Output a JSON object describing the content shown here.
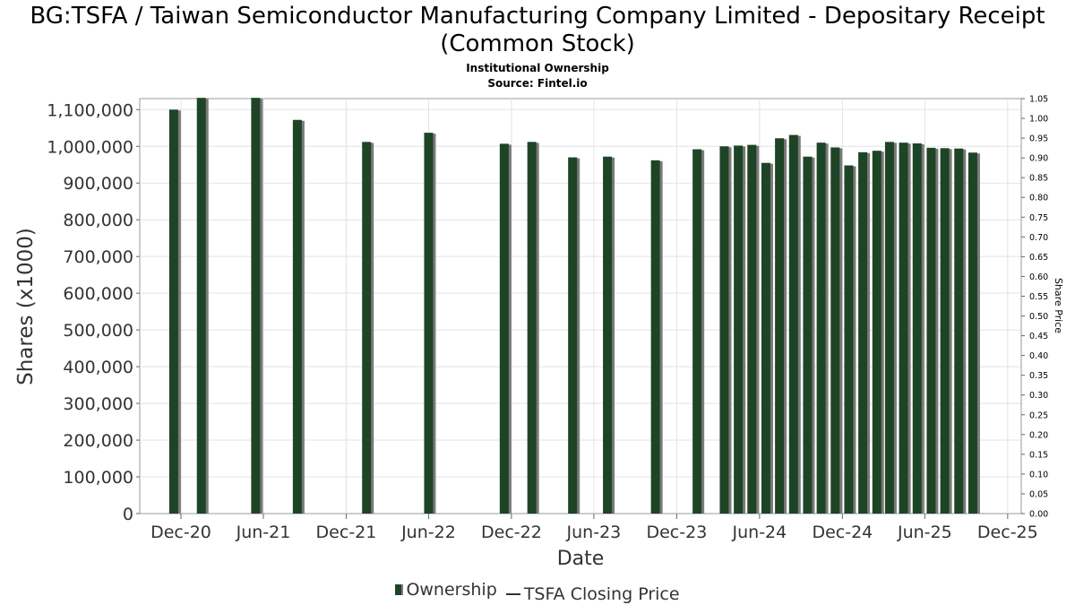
{
  "title": "BG:TSFA / Taiwan Semiconductor Manufacturing Company Limited - Depositary Receipt (Common Stock)",
  "subtitle": "Institutional Ownership",
  "source": "Source: Fintel.io",
  "legend": {
    "ownership": "Ownership",
    "price": "TSFA Closing Price"
  },
  "colors": {
    "bar": "#1e4426",
    "bar_shadow": "#7a7a7a",
    "grid": "#e3e3e3",
    "frame": "#999999"
  },
  "chart_data": {
    "type": "bar",
    "title": "BG:TSFA / Taiwan Semiconductor Manufacturing Company Limited - Depositary Receipt (Common Stock)",
    "subtitle": "Institutional Ownership",
    "xlabel": "Date",
    "ylabel": "Shares (x1000)",
    "y2label": "Share Price",
    "ylim": [
      0,
      1130000
    ],
    "y2lim": [
      0,
      1.05
    ],
    "xlim": [
      "2020-09-01",
      "2025-12-31"
    ],
    "yticks": [
      0,
      100000,
      200000,
      300000,
      400000,
      500000,
      600000,
      700000,
      800000,
      900000,
      1000000,
      1100000
    ],
    "ytick_labels": [
      "0",
      "100,000",
      "200,000",
      "300,000",
      "400,000",
      "500,000",
      "600,000",
      "700,000",
      "800,000",
      "900,000",
      "1,000,000",
      "1,100,000"
    ],
    "y2ticks": [
      "0.00",
      "0.05",
      "0.10",
      "0.15",
      "0.20",
      "0.25",
      "0.30",
      "0.35",
      "0.40",
      "0.45",
      "0.50",
      "0.55",
      "0.60",
      "0.65",
      "0.70",
      "0.75",
      "0.80",
      "0.85",
      "0.90",
      "0.95",
      "1.00",
      "1.05"
    ],
    "xticks": [
      {
        "label": "Dec-20",
        "date": "2020-12-01"
      },
      {
        "label": "Jun-21",
        "date": "2021-06-01"
      },
      {
        "label": "Dec-21",
        "date": "2021-12-01"
      },
      {
        "label": "Jun-22",
        "date": "2022-06-01"
      },
      {
        "label": "Dec-22",
        "date": "2022-12-01"
      },
      {
        "label": "Jun-23",
        "date": "2023-06-01"
      },
      {
        "label": "Dec-23",
        "date": "2023-12-01"
      },
      {
        "label": "Jun-24",
        "date": "2024-06-01"
      },
      {
        "label": "Dec-24",
        "date": "2024-12-01"
      },
      {
        "label": "Jun-25",
        "date": "2025-06-01"
      },
      {
        "label": "Dec-25",
        "date": "2025-12-01"
      }
    ],
    "grid": true,
    "legend_position": "bottom",
    "series": [
      {
        "name": "Ownership",
        "points": [
          {
            "date": "2020-11-15",
            "value": 1100000
          },
          {
            "date": "2021-01-15",
            "value": 1132000
          },
          {
            "date": "2021-05-15",
            "value": 1132000
          },
          {
            "date": "2021-08-15",
            "value": 1072000
          },
          {
            "date": "2022-01-15",
            "value": 1012000
          },
          {
            "date": "2022-06-01",
            "value": 1037000
          },
          {
            "date": "2022-11-15",
            "value": 1007000
          },
          {
            "date": "2023-01-15",
            "value": 1012000
          },
          {
            "date": "2023-04-15",
            "value": 970000
          },
          {
            "date": "2023-07-01",
            "value": 972000
          },
          {
            "date": "2023-10-15",
            "value": 962000
          },
          {
            "date": "2024-01-15",
            "value": 992000
          },
          {
            "date": "2024-03-15",
            "value": 1000000
          },
          {
            "date": "2024-04-15",
            "value": 1002000
          },
          {
            "date": "2024-05-15",
            "value": 1004000
          },
          {
            "date": "2024-06-15",
            "value": 955000
          },
          {
            "date": "2024-07-15",
            "value": 1022000
          },
          {
            "date": "2024-08-15",
            "value": 1031000
          },
          {
            "date": "2024-09-15",
            "value": 972000
          },
          {
            "date": "2024-10-15",
            "value": 1010000
          },
          {
            "date": "2024-11-15",
            "value": 997000
          },
          {
            "date": "2024-12-15",
            "value": 948000
          },
          {
            "date": "2025-01-15",
            "value": 984000
          },
          {
            "date": "2025-02-15",
            "value": 988000
          },
          {
            "date": "2025-03-15",
            "value": 1012000
          },
          {
            "date": "2025-04-15",
            "value": 1010000
          },
          {
            "date": "2025-05-15",
            "value": 1008000
          },
          {
            "date": "2025-06-15",
            "value": 996000
          },
          {
            "date": "2025-07-15",
            "value": 995000
          },
          {
            "date": "2025-08-15",
            "value": 994000
          },
          {
            "date": "2025-09-15",
            "value": 983000
          }
        ]
      },
      {
        "name": "TSFA Closing Price",
        "points": []
      }
    ]
  }
}
